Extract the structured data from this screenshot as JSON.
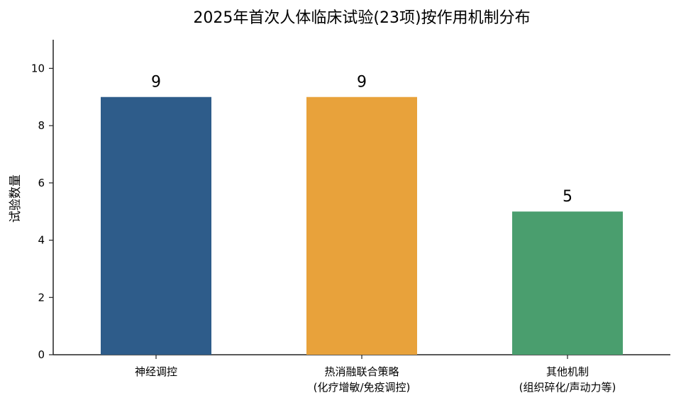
{
  "chart_data": {
    "type": "bar",
    "title": "2025年首次人体临床试验(23项)按作用机制分布",
    "xlabel": "",
    "ylabel": "试验数量",
    "ylim": [
      0,
      11
    ],
    "yticks": [
      0,
      2,
      4,
      6,
      8,
      10
    ],
    "grid": false,
    "categories": [
      [
        "神经调控"
      ],
      [
        "热消融联合策略",
        "(化疗增敏/免疫调控)"
      ],
      [
        "其他机制",
        "(组织碎化/声动力等)"
      ]
    ],
    "values": [
      9,
      9,
      5
    ],
    "data_labels": [
      "9",
      "9",
      "5"
    ],
    "colors": [
      "#2e5c8a",
      "#e8a23b",
      "#4a9e6e"
    ]
  }
}
